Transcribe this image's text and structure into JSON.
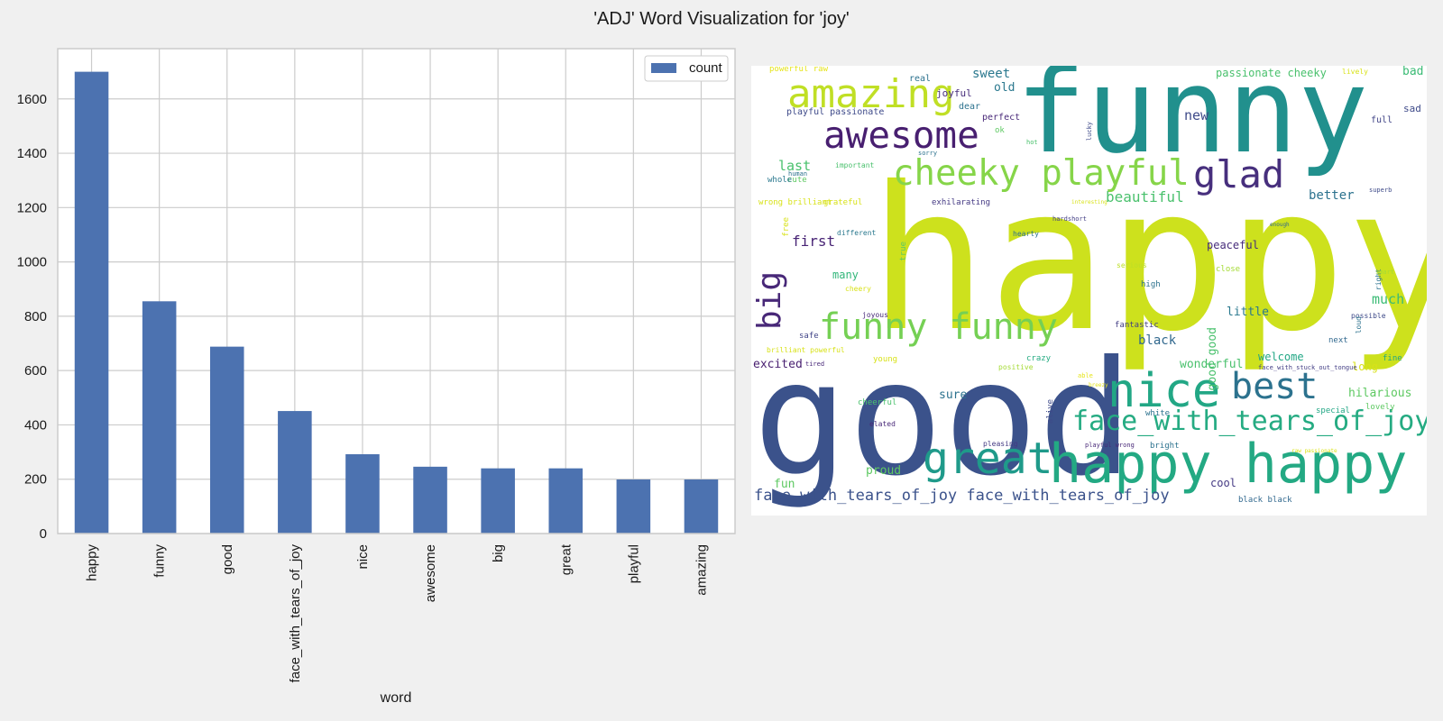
{
  "figure_title": "'ADJ' Word Visualization for 'joy'",
  "chart_data": {
    "type": "bar",
    "categories": [
      "happy",
      "funny",
      "good",
      "face_with_tears_of_joy",
      "nice",
      "awesome",
      "big",
      "great",
      "playful",
      "amazing"
    ],
    "series": [
      {
        "name": "count",
        "values": [
          1700,
          855,
          688,
          451,
          292,
          246,
          240,
          240,
          199,
          199
        ],
        "color": "#4c72b0"
      }
    ],
    "xlabel": "word",
    "ylabel": "",
    "ylim": [
      0,
      1785
    ],
    "yticks": [
      0,
      200,
      400,
      600,
      800,
      1000,
      1200,
      1400,
      1600
    ],
    "grid": true,
    "legend_placement": "top-right",
    "colors": {
      "background": "#f0f0f0",
      "plot_background": "#ffffff",
      "grid": "#cccccc",
      "bar": "#4c72b0"
    }
  },
  "wordcloud": {
    "words": [
      {
        "text": "happy",
        "color": "#cde11d"
      },
      {
        "text": "funny",
        "color": "#21908d"
      },
      {
        "text": "good",
        "color": "#3b528b"
      },
      {
        "text": "amazing",
        "color": "#c0df25"
      },
      {
        "text": "awesome",
        "color": "#481f70"
      },
      {
        "text": "cheeky playful",
        "color": "#86d549"
      },
      {
        "text": "glad",
        "color": "#472f7d"
      },
      {
        "text": "funny funny",
        "color": "#75d054"
      },
      {
        "text": "big",
        "color": "#482878"
      },
      {
        "text": "nice",
        "color": "#22a785"
      },
      {
        "text": "best",
        "color": "#2c728e"
      },
      {
        "text": "face_with_tears_of_joy",
        "color": "#25ab82"
      },
      {
        "text": "great",
        "color": "#1f9a8a"
      },
      {
        "text": "happy happy",
        "color": "#23a983"
      },
      {
        "text": "face_with_tears_of_joy face_with_tears_of_joy",
        "color": "#3b528b"
      },
      {
        "text": "beautiful",
        "color": "#4ac16d"
      },
      {
        "text": "first",
        "color": "#482475"
      },
      {
        "text": "sweet",
        "color": "#2a788e"
      },
      {
        "text": "passionate cheeky",
        "color": "#4ac16d"
      },
      {
        "text": "new",
        "color": "#3e4a89"
      },
      {
        "text": "better",
        "color": "#2c728e"
      },
      {
        "text": "last",
        "color": "#4ac16d"
      },
      {
        "text": "black",
        "color": "#31688e"
      },
      {
        "text": "much",
        "color": "#3bbb75"
      },
      {
        "text": "little",
        "color": "#2a788e"
      },
      {
        "text": "excited",
        "color": "#481f70"
      },
      {
        "text": "wonderful",
        "color": "#4ac16d"
      },
      {
        "text": "welcome",
        "color": "#22a785"
      },
      {
        "text": "hilarious",
        "color": "#5ec962"
      },
      {
        "text": "long",
        "color": "#d8e219"
      },
      {
        "text": "peaceful",
        "color": "#472d7b"
      },
      {
        "text": "proud",
        "color": "#5ec962"
      },
      {
        "text": "sure",
        "color": "#2c728e"
      },
      {
        "text": "cool",
        "color": "#443983"
      },
      {
        "text": "fun",
        "color": "#5ec962"
      },
      {
        "text": "old",
        "color": "#2a788e"
      },
      {
        "text": "bad",
        "color": "#3bbb75"
      },
      {
        "text": "sad",
        "color": "#3e4a89"
      },
      {
        "text": "full",
        "color": "#414487"
      },
      {
        "text": "many",
        "color": "#32b67a"
      },
      {
        "text": "good good",
        "color": "#4ac16d"
      },
      {
        "text": "joyful",
        "color": "#472d7b"
      },
      {
        "text": "playful passionate",
        "color": "#3e4a89"
      },
      {
        "text": "powerful raw",
        "color": "#e5e419"
      },
      {
        "text": "real",
        "color": "#2c728e"
      },
      {
        "text": "dear",
        "color": "#2c728e"
      },
      {
        "text": "perfect",
        "color": "#482878"
      },
      {
        "text": "ok",
        "color": "#5ec962"
      },
      {
        "text": "lively",
        "color": "#d8e219"
      },
      {
        "text": "cute",
        "color": "#5ec962"
      },
      {
        "text": "whole",
        "color": "#2a788e"
      },
      {
        "text": "important",
        "color": "#4ac16d"
      },
      {
        "text": "grateful",
        "color": "#d8e219"
      },
      {
        "text": "wrong brilliant",
        "color": "#d8e219"
      },
      {
        "text": "exhilarating",
        "color": "#443983"
      },
      {
        "text": "different",
        "color": "#2a788e"
      },
      {
        "text": "free",
        "color": "#d8e219"
      },
      {
        "text": "true",
        "color": "#5ec962"
      },
      {
        "text": "hearty",
        "color": "#2c728e"
      },
      {
        "text": "serious",
        "color": "#bddf26"
      },
      {
        "text": "close",
        "color": "#a5db36"
      },
      {
        "text": "cheery",
        "color": "#d8e219"
      },
      {
        "text": "high",
        "color": "#2c728e"
      },
      {
        "text": "joyous",
        "color": "#482878"
      },
      {
        "text": "safe",
        "color": "#414487"
      },
      {
        "text": "fantastic",
        "color": "#433e85"
      },
      {
        "text": "brilliant powerful",
        "color": "#d8e219"
      },
      {
        "text": "young",
        "color": "#d8e219"
      },
      {
        "text": "crazy",
        "color": "#25ab82"
      },
      {
        "text": "tired",
        "color": "#482878"
      },
      {
        "text": "positive",
        "color": "#a5db36"
      },
      {
        "text": "able",
        "color": "#e5e419"
      },
      {
        "text": "breezy",
        "color": "#e5e419"
      },
      {
        "text": "cheerful",
        "color": "#4ac16d"
      },
      {
        "text": "alive",
        "color": "#3e4a89"
      },
      {
        "text": "white",
        "color": "#2c728e"
      },
      {
        "text": "special",
        "color": "#22a785"
      },
      {
        "text": "lovely",
        "color": "#5ec962"
      },
      {
        "text": "elated",
        "color": "#482878"
      },
      {
        "text": "pleasing",
        "color": "#443983"
      },
      {
        "text": "playful wrong",
        "color": "#482878"
      },
      {
        "text": "bright",
        "color": "#2c728e"
      },
      {
        "text": "raw passionate",
        "color": "#d8e219"
      },
      {
        "text": "black black",
        "color": "#31688e"
      },
      {
        "text": "next",
        "color": "#31688e"
      },
      {
        "text": "fine",
        "color": "#22a785"
      },
      {
        "text": "possible",
        "color": "#3e4a89"
      },
      {
        "text": "loud",
        "color": "#2c728e"
      },
      {
        "text": "right",
        "color": "#2c728e"
      },
      {
        "text": "smart",
        "color": "#a5db36"
      },
      {
        "text": "superb",
        "color": "#3e4a89"
      },
      {
        "text": "enough",
        "color": "#31688e"
      },
      {
        "text": "interesting",
        "color": "#d8e219"
      },
      {
        "text": "hardshort",
        "color": "#433e85"
      },
      {
        "text": "human",
        "color": "#2c728e"
      },
      {
        "text": "sorry",
        "color": "#2c728e"
      },
      {
        "text": "hot",
        "color": "#4ac16d"
      },
      {
        "text": "lucky",
        "color": "#3e4a89"
      },
      {
        "text": "face_with_stuck_out_tongue",
        "color": "#433e85"
      }
    ]
  }
}
